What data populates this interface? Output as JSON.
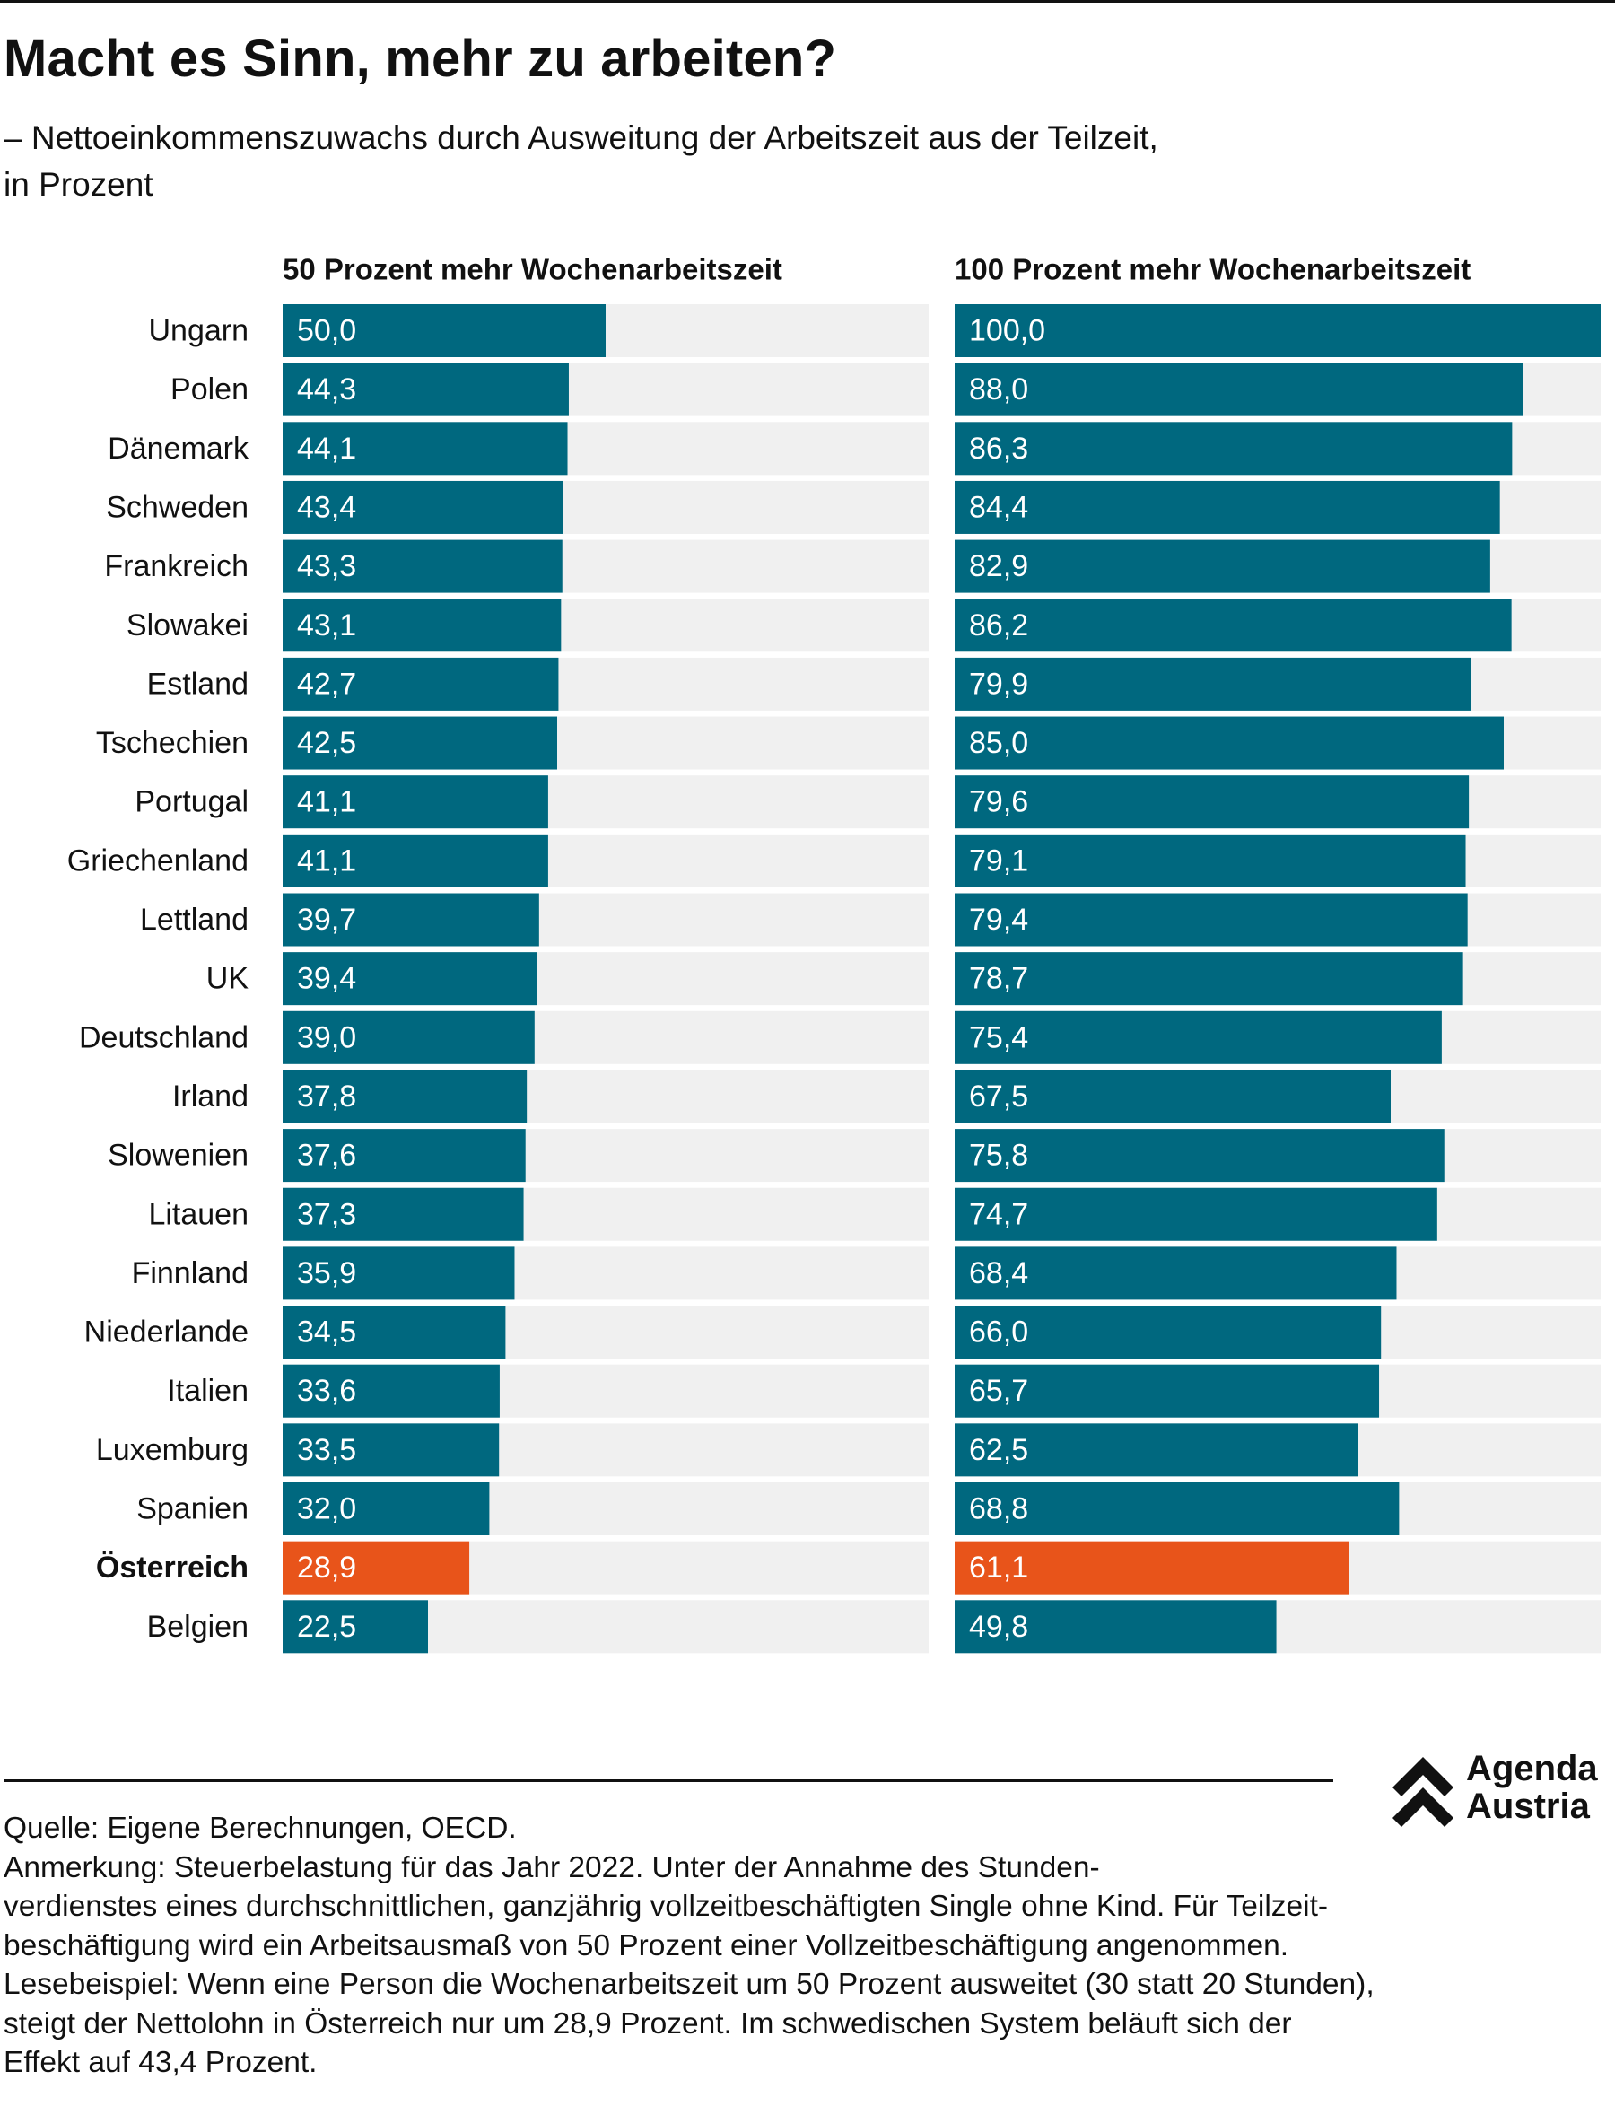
{
  "title": "Macht es Sinn, mehr zu arbeiten?",
  "subtitle": [
    "– Nettoeinkommenszuwachs durch Ausweitung der Arbeitszeit aus der Teilzeit,",
    "in Prozent"
  ],
  "colors": {
    "bar": "#00687f",
    "highlight": "#e8541a",
    "track": "#f0f0f0",
    "label_on_bar": "#ffffff",
    "text": "#111111"
  },
  "chart_data": {
    "type": "bar",
    "orientation": "horizontal",
    "categories": [
      "Ungarn",
      "Polen",
      "Dänemark",
      "Schweden",
      "Frankreich",
      "Slowakei",
      "Estland",
      "Tschechien",
      "Portugal",
      "Griechenland",
      "Lettland",
      "UK",
      "Deutschland",
      "Irland",
      "Slowenien",
      "Litauen",
      "Finnland",
      "Niederlande",
      "Italien",
      "Luxemburg",
      "Spanien",
      "Österreich",
      "Belgien"
    ],
    "highlight_category": "Österreich",
    "panels": [
      {
        "title": "50 Prozent mehr Wochenarbeitszeit",
        "xlim": [
          0,
          100
        ],
        "values": [
          50.0,
          44.3,
          44.1,
          43.4,
          43.3,
          43.1,
          42.7,
          42.5,
          41.1,
          41.1,
          39.7,
          39.4,
          39.0,
          37.8,
          37.6,
          37.3,
          35.9,
          34.5,
          33.6,
          33.5,
          32.0,
          28.9,
          22.5
        ],
        "labels": [
          "50,0",
          "44,3",
          "44,1",
          "43,4",
          "43,3",
          "43,1",
          "42,7",
          "42,5",
          "41,1",
          "41,1",
          "39,7",
          "39,4",
          "39,0",
          "37,8",
          "37,6",
          "37,3",
          "35,9",
          "34,5",
          "33,6",
          "33,5",
          "32,0",
          "28,9",
          "22,5"
        ]
      },
      {
        "title": "100 Prozent mehr Wochenarbeitszeit",
        "xlim": [
          0,
          100
        ],
        "values": [
          100.0,
          88.0,
          86.3,
          84.4,
          82.9,
          86.2,
          79.9,
          85.0,
          79.6,
          79.1,
          79.4,
          78.7,
          75.4,
          67.5,
          75.8,
          74.7,
          68.4,
          66.0,
          65.7,
          62.5,
          68.8,
          61.1,
          49.8
        ],
        "labels": [
          "100,0",
          "88,0",
          "86,3",
          "84,4",
          "82,9",
          "86,2",
          "79,9",
          "85,0",
          "79,6",
          "79,1",
          "79,4",
          "78,7",
          "75,4",
          "67,5",
          "75,8",
          "74,7",
          "68,4",
          "66,0",
          "65,7",
          "62,5",
          "68,8",
          "61,1",
          "49,8"
        ]
      }
    ]
  },
  "logo": {
    "icon": "double-chevron-up-icon",
    "line1": "Agenda",
    "line2": "Austria"
  },
  "footer": {
    "lines": [
      "Quelle: Eigene Berechnungen, OECD.",
      "Anmerkung: Steuerbelastung für das Jahr 2022. Unter der Annahme des Stunden-",
      "verdienstes eines durchschnittlichen, ganzjährig vollzeitbeschäftigten Single ohne Kind. Für Teilzeit-",
      "beschäftigung wird ein Arbeitsausmaß von 50 Prozent einer Vollzeitbeschäftigung angenommen.",
      "Lesebeispiel: Wenn eine Person die Wochenarbeitszeit um 50 Prozent ausweitet (30 statt 20 Stunden),",
      "steigt der Nettolohn in Österreich nur um 28,9 Prozent. Im schwedischen System beläuft sich der",
      "Effekt auf 43,4 Prozent."
    ]
  }
}
